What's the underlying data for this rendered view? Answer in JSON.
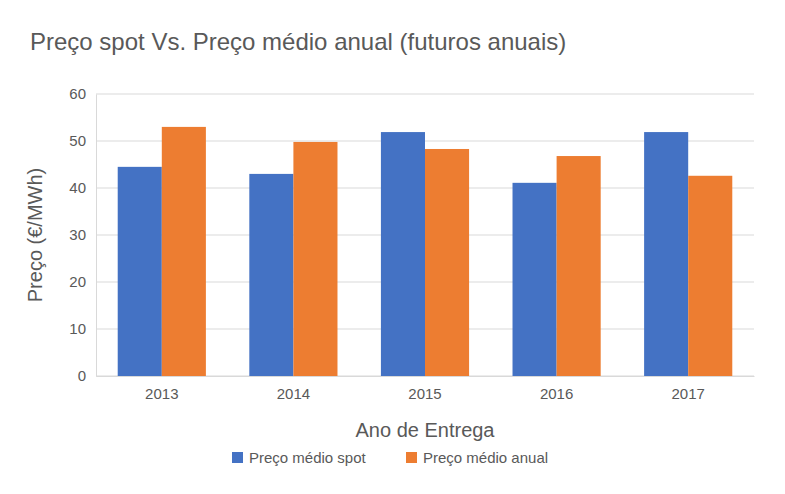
{
  "chart_data": {
    "type": "bar",
    "title": "Preço spot Vs. Preço médio anual (futuros anuais)",
    "x_label": "Ano de Entrega",
    "y_label": "Preço (€/MWh)",
    "categories": [
      "2013",
      "2014",
      "2015",
      "2016",
      "2017"
    ],
    "series": [
      {
        "name": "Preço médio spot",
        "color": "#4472c4",
        "values": [
          44.5,
          43.0,
          51.9,
          41.1,
          51.9
        ]
      },
      {
        "name": "Preço médio anual",
        "color": "#ed7d31",
        "values": [
          53.0,
          49.8,
          48.3,
          46.8,
          42.6
        ]
      }
    ],
    "ylim": [
      0,
      60
    ],
    "yticks": [
      0,
      10,
      20,
      30,
      40,
      50,
      60
    ],
    "grid": true,
    "legend": "bottom"
  }
}
